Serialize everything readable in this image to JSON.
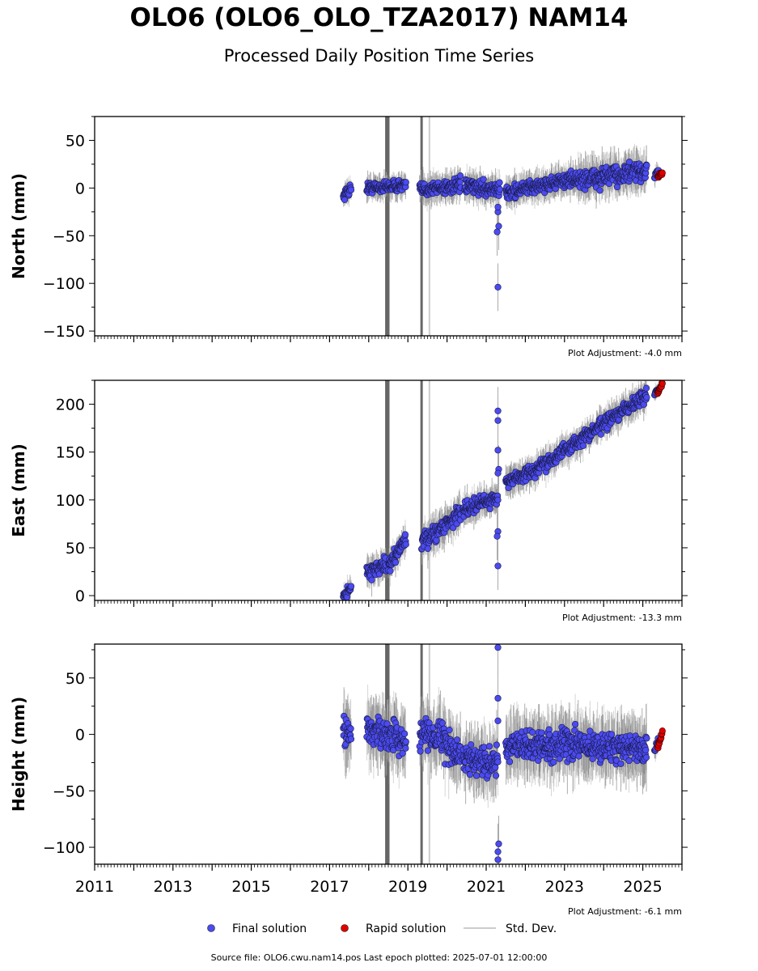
{
  "header": {
    "title": "OLO6 (OLO6_OLO_TZA2017) NAM14",
    "subtitle": "Processed Daily Position Time Series"
  },
  "legend": {
    "final": "Final solution",
    "rapid": "Rapid solution",
    "stddev": "Std. Dev."
  },
  "footer": {
    "source": "Source file: OLO6.cwu.nam14.pos  Last epoch plotted: 2025-07-01 12:00:00"
  },
  "colors": {
    "final": "#4b4bf0",
    "rapid": "#e00000",
    "stddev": "#888888",
    "outlier_band": "#666666"
  },
  "chart_data": [
    {
      "type": "scatter",
      "ylabel": "North (mm)",
      "adjustment": "Plot Adjustment: -4.0 mm",
      "xlim": [
        2011.0,
        2026.0
      ],
      "ylim": [
        -155,
        75
      ],
      "yticks": [
        50,
        0,
        -50,
        -100,
        -150
      ],
      "x_tick_labels": [],
      "segments": [
        {
          "x0": 2017.35,
          "x1": 2017.55,
          "y0": -8,
          "y1": 0,
          "sd": 4
        },
        {
          "x0": 2017.95,
          "x1": 2018.95,
          "y0": 0,
          "y1": 3,
          "sd": 4
        },
        {
          "x0": 2019.3,
          "x1": 2020.35,
          "y0": -2,
          "y1": 3,
          "sd": 5
        },
        {
          "x0": 2020.45,
          "x1": 2021.35,
          "y0": 2,
          "y1": -2,
          "sd": 5
        },
        {
          "x0": 2021.5,
          "x1": 2022.3,
          "y0": -5,
          "y1": 2,
          "sd": 5
        },
        {
          "x0": 2022.3,
          "x1": 2023.3,
          "y0": 2,
          "y1": 10,
          "sd": 5
        },
        {
          "x0": 2023.3,
          "x1": 2025.1,
          "y0": 8,
          "y1": 18,
          "sd": 7
        }
      ],
      "outliers": [
        {
          "x": 2021.3,
          "y": -25
        },
        {
          "x": 2021.32,
          "y": -40
        },
        {
          "x": 2021.28,
          "y": -46
        },
        {
          "x": 2021.3,
          "y": -104
        },
        {
          "x": 2021.3,
          "y": -20
        }
      ],
      "rapid": {
        "x0": 2025.38,
        "x1": 2025.5,
        "y0": 12,
        "y1": 16
      },
      "final_tail": {
        "x0": 2025.3,
        "x1": 2025.4,
        "y0": 12,
        "y1": 17
      },
      "bands": [
        2018.45,
        2018.5,
        2019.35
      ]
    },
    {
      "type": "scatter",
      "ylabel": "East (mm)",
      "adjustment": "Plot Adjustment: -13.3 mm",
      "xlim": [
        2011.0,
        2026.0
      ],
      "ylim": [
        -5,
        225
      ],
      "yticks": [
        200,
        150,
        100,
        50,
        0
      ],
      "x_tick_labels": [],
      "segments": [
        {
          "x0": 2017.35,
          "x1": 2017.55,
          "y0": 0,
          "y1": 8,
          "sd": 4
        },
        {
          "x0": 2017.95,
          "x1": 2018.45,
          "y0": 25,
          "y1": 32,
          "sd": 5
        },
        {
          "x0": 2018.5,
          "x1": 2018.95,
          "y0": 30,
          "y1": 60,
          "sd": 5
        },
        {
          "x0": 2019.35,
          "x1": 2020.35,
          "y0": 55,
          "y1": 87,
          "sd": 6
        },
        {
          "x0": 2020.4,
          "x1": 2021.3,
          "y0": 90,
          "y1": 103,
          "sd": 5
        },
        {
          "x0": 2021.5,
          "x1": 2022.3,
          "y0": 118,
          "y1": 132,
          "sd": 5
        },
        {
          "x0": 2022.3,
          "x1": 2023.3,
          "y0": 133,
          "y1": 160,
          "sd": 5
        },
        {
          "x0": 2023.3,
          "x1": 2025.1,
          "y0": 160,
          "y1": 210,
          "sd": 5
        }
      ],
      "outliers": [
        {
          "x": 2021.3,
          "y": 193
        },
        {
          "x": 2021.3,
          "y": 183
        },
        {
          "x": 2021.3,
          "y": 152
        },
        {
          "x": 2021.32,
          "y": 132
        },
        {
          "x": 2021.3,
          "y": 128
        },
        {
          "x": 2021.3,
          "y": 67
        },
        {
          "x": 2021.28,
          "y": 62
        },
        {
          "x": 2021.3,
          "y": 31
        }
      ],
      "rapid": {
        "x0": 2025.38,
        "x1": 2025.5,
        "y0": 212,
        "y1": 222
      },
      "final_tail": {
        "x0": 2025.3,
        "x1": 2025.4,
        "y0": 210,
        "y1": 216
      },
      "bands": [
        2018.45,
        2018.5,
        2019.35
      ]
    },
    {
      "type": "scatter",
      "ylabel": "Height (mm)",
      "adjustment": "Plot Adjustment: -6.1 mm",
      "xlim": [
        2011.0,
        2026.0
      ],
      "ylim": [
        -115,
        80
      ],
      "yticks": [
        50,
        0,
        -50,
        -100
      ],
      "x_tick_labels": [
        "2011",
        "2013",
        "2015",
        "2017",
        "2019",
        "2021",
        "2023",
        "2025"
      ],
      "segments": [
        {
          "x0": 2017.35,
          "x1": 2017.55,
          "y0": 0,
          "y1": 0,
          "sd": 10
        },
        {
          "x0": 2017.95,
          "x1": 2018.95,
          "y0": 5,
          "y1": -5,
          "sd": 9
        },
        {
          "x0": 2019.3,
          "x1": 2019.95,
          "y0": 0,
          "y1": 0,
          "sd": 9
        },
        {
          "x0": 2019.95,
          "x1": 2020.35,
          "y0": -10,
          "y1": -20,
          "sd": 9
        },
        {
          "x0": 2020.4,
          "x1": 2021.3,
          "y0": -20,
          "y1": -25,
          "sd": 9
        },
        {
          "x0": 2021.5,
          "x1": 2023.3,
          "y0": -12,
          "y1": -8,
          "sd": 9
        },
        {
          "x0": 2023.3,
          "x1": 2025.1,
          "y0": -10,
          "y1": -12,
          "sd": 9
        }
      ],
      "outliers": [
        {
          "x": 2021.3,
          "y": 77
        },
        {
          "x": 2021.3,
          "y": 32
        },
        {
          "x": 2021.3,
          "y": 12
        },
        {
          "x": 2021.32,
          "y": -97
        },
        {
          "x": 2021.3,
          "y": -104
        },
        {
          "x": 2021.3,
          "y": -111
        }
      ],
      "rapid": {
        "x0": 2025.38,
        "x1": 2025.5,
        "y0": -12,
        "y1": 2
      },
      "final_tail": {
        "x0": 2025.3,
        "x1": 2025.4,
        "y0": -15,
        "y1": -5
      },
      "bands": [
        2018.45,
        2018.5,
        2019.35
      ]
    }
  ]
}
